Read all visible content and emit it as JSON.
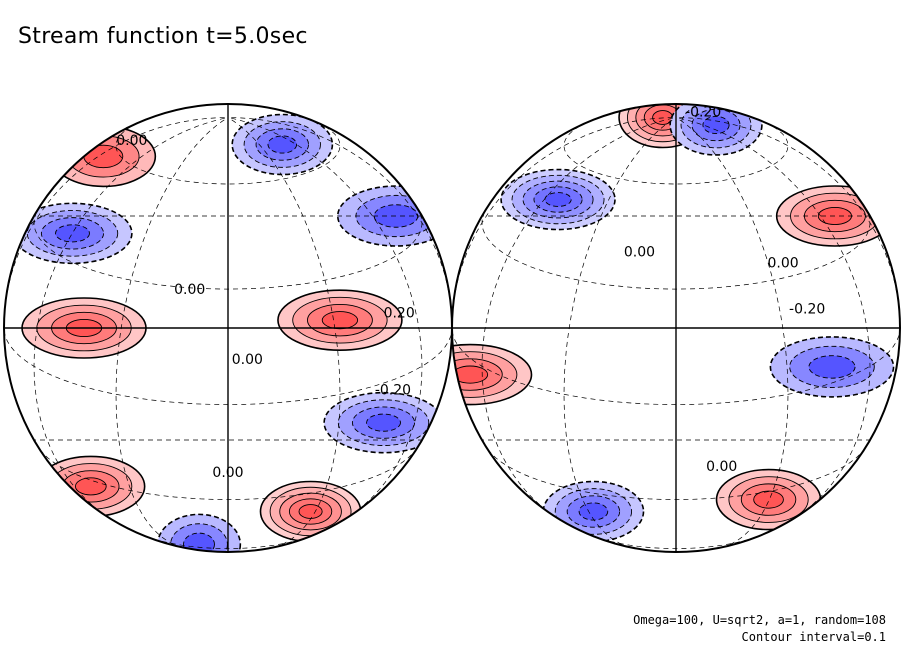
{
  "title": "Stream function t=5.0sec",
  "notes": {
    "params": "Omega=100, U=sqrt2, a=1, random=108",
    "interval": "Contour interval=0.1"
  },
  "colors": {
    "positive": "#e03a3a",
    "negative": "#3a3ae0",
    "background": "#ffffff"
  },
  "chart_data": {
    "type": "heatmap",
    "projection": "orthographic, two hemispheres",
    "contour_interval": 0.1,
    "hemispheres": [
      {
        "name": "left",
        "features": [
          {
            "type": "high",
            "value": 0.3,
            "lon": -40,
            "lat": 0
          },
          {
            "type": "high",
            "value": 0.3,
            "lon": 30,
            "lat": 2
          },
          {
            "type": "high",
            "value": 0.2,
            "lon": -60,
            "lat": 50
          },
          {
            "type": "high",
            "value": 0.4,
            "lon": 40,
            "lat": -55
          },
          {
            "type": "high",
            "value": 0.3,
            "lon": -60,
            "lat": -45
          },
          {
            "type": "low",
            "value": -0.3,
            "lon": -50,
            "lat": 25
          },
          {
            "type": "low",
            "value": -0.3,
            "lon": 25,
            "lat": 55
          },
          {
            "type": "low",
            "value": -0.3,
            "lon": 50,
            "lat": -25
          },
          {
            "type": "low",
            "value": -0.2,
            "lon": 60,
            "lat": 30
          },
          {
            "type": "low",
            "value": -0.2,
            "lon": -30,
            "lat": -75
          }
        ],
        "labels": [
          {
            "text": "0.00",
            "lon": -52,
            "lat": 57
          },
          {
            "text": "0.00",
            "lon": -10,
            "lat": 10
          },
          {
            "text": "0.00",
            "lon": 5,
            "lat": -8
          },
          {
            "text": "-0.20",
            "lon": 50,
            "lat": -16
          },
          {
            "text": "0.20",
            "lon": 50,
            "lat": 4
          },
          {
            "text": "0.00",
            "lon": 0,
            "lat": -40
          }
        ]
      },
      {
        "name": "right",
        "features": [
          {
            "type": "high",
            "value": 0.4,
            "lon": -10,
            "lat": 70
          },
          {
            "type": "high",
            "value": 0.3,
            "lon": 55,
            "lat": 30
          },
          {
            "type": "high",
            "value": 0.3,
            "lon": -70,
            "lat": -12
          },
          {
            "type": "high",
            "value": 0.3,
            "lon": 40,
            "lat": -50
          },
          {
            "type": "low",
            "value": -0.4,
            "lon": -40,
            "lat": 35
          },
          {
            "type": "low",
            "value": -0.3,
            "lon": 25,
            "lat": 65
          },
          {
            "type": "low",
            "value": -0.2,
            "lon": 45,
            "lat": -10
          },
          {
            "type": "low",
            "value": -0.3,
            "lon": -40,
            "lat": -55
          }
        ],
        "labels": [
          {
            "text": "-0.20",
            "lon": 28,
            "lat": 75
          },
          {
            "text": "0.00",
            "lon": -10,
            "lat": 20
          },
          {
            "text": "0.00",
            "lon": 30,
            "lat": 17
          },
          {
            "text": "-0.20",
            "lon": 36,
            "lat": 5
          },
          {
            "text": "0.00",
            "lon": 15,
            "lat": -38
          }
        ]
      }
    ]
  }
}
